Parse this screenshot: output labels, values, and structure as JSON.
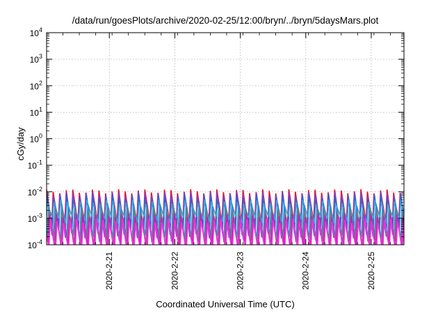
{
  "chart_data": {
    "type": "line",
    "title": "/data/run/goesPlots/archive/2020-02-25/12:00/bryn/../bryn/5daysMars.plot",
    "xlabel": "Coordinated Universal Time (UTC)",
    "ylabel": "cGy/day",
    "y_scale": "log",
    "ylim": [
      0.0001,
      10000
    ],
    "y_ticks": [
      {
        "base": "10",
        "exp": "-4",
        "value": 0.0001
      },
      {
        "base": "10",
        "exp": "-3",
        "value": 0.001
      },
      {
        "base": "10",
        "exp": "-2",
        "value": 0.01
      },
      {
        "base": "10",
        "exp": "-1",
        "value": 0.1
      },
      {
        "base": "10",
        "exp": "0",
        "value": 1
      },
      {
        "base": "10",
        "exp": "1",
        "value": 10
      },
      {
        "base": "10",
        "exp": "2",
        "value": 100
      },
      {
        "base": "10",
        "exp": "3",
        "value": 1000
      },
      {
        "base": "10",
        "exp": "4",
        "value": 10000
      }
    ],
    "xlim": [
      "2020-02-20 01:00",
      "2020-02-25 12:00"
    ],
    "x_ticks": [
      "2020-2-21",
      "2020-2-22",
      "2020-2-23",
      "2020-2-24",
      "2020-2-25"
    ],
    "grid": true,
    "cycle_hours": 2.4,
    "series": [
      {
        "color": "#e8141e",
        "peak": 0.0105,
        "trough": 0.0006,
        "phase": 0.0
      },
      {
        "color": "#9b2fd0",
        "peak": 0.0085,
        "trough": 0.00035,
        "phase": 0.04
      },
      {
        "color": "#2f64d8",
        "peak": 0.0068,
        "trough": 0.00025,
        "phase": 0.08
      },
      {
        "color": "#2aa8e8",
        "peak": 0.0042,
        "trough": 0.0009,
        "phase": 0.12
      },
      {
        "color": "#2e8bd0",
        "peak": 0.0031,
        "trough": 0.00018,
        "phase": 0.3
      },
      {
        "color": "#7a7a7a",
        "peak": 0.0021,
        "trough": 0.00012,
        "phase": 0.42
      },
      {
        "color": "#c020c0",
        "peak": 0.0013,
        "trough": 8e-05,
        "phase": 0.5
      },
      {
        "color": "#ff2ee0",
        "peak": 0.0008,
        "trough": 6e-05,
        "phase": 0.58
      }
    ]
  }
}
